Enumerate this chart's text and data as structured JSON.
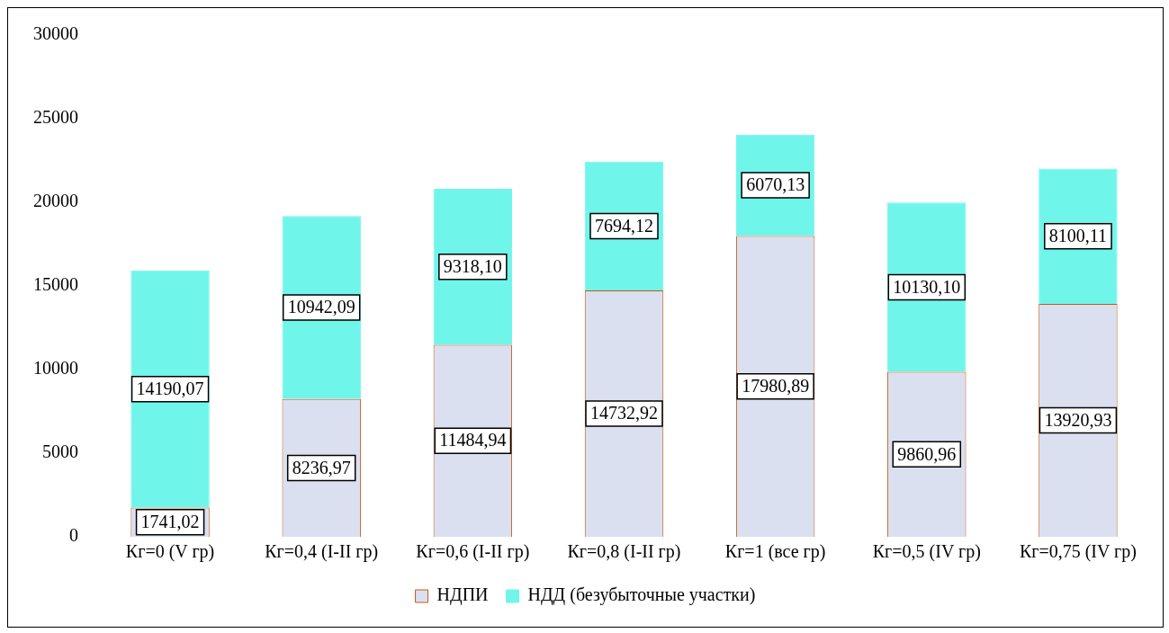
{
  "chart_data": {
    "type": "bar",
    "stacked": true,
    "categories": [
      "Кг=0 (V гр)",
      "Кг=0,4 (I-II гр)",
      "Кг=0,6 (I-II гр)",
      "Кг=0,8 (I-II гр)",
      "Кг=1 (все гр)",
      "Кг=0,5 (IV гр)",
      "Кг=0,75 (IV гр)"
    ],
    "series": [
      {
        "name": "НДПИ",
        "color": "#dae0f0",
        "values": [
          1741.02,
          8236.97,
          11484.94,
          14732.92,
          17980.89,
          9860.96,
          13920.93
        ],
        "value_labels": [
          "1741,02",
          "8236,97",
          "11484,94",
          "14732,92",
          "17980,89",
          "9860,96",
          "13920,93"
        ]
      },
      {
        "name": "НДД (безубыточные участки)",
        "color": "#70f5ea",
        "values": [
          14190.07,
          10942.09,
          9318.1,
          7694.12,
          6070.13,
          10130.1,
          8100.11
        ],
        "value_labels": [
          "14190,07",
          "10942,09",
          "9318,10",
          "7694,12",
          "6070,13",
          "10130,10",
          "8100,11"
        ]
      }
    ],
    "ylim": [
      0,
      30000
    ],
    "yticks": [
      0,
      5000,
      10000,
      15000,
      20000,
      25000,
      30000
    ],
    "grid": false,
    "legend": "bottom"
  }
}
